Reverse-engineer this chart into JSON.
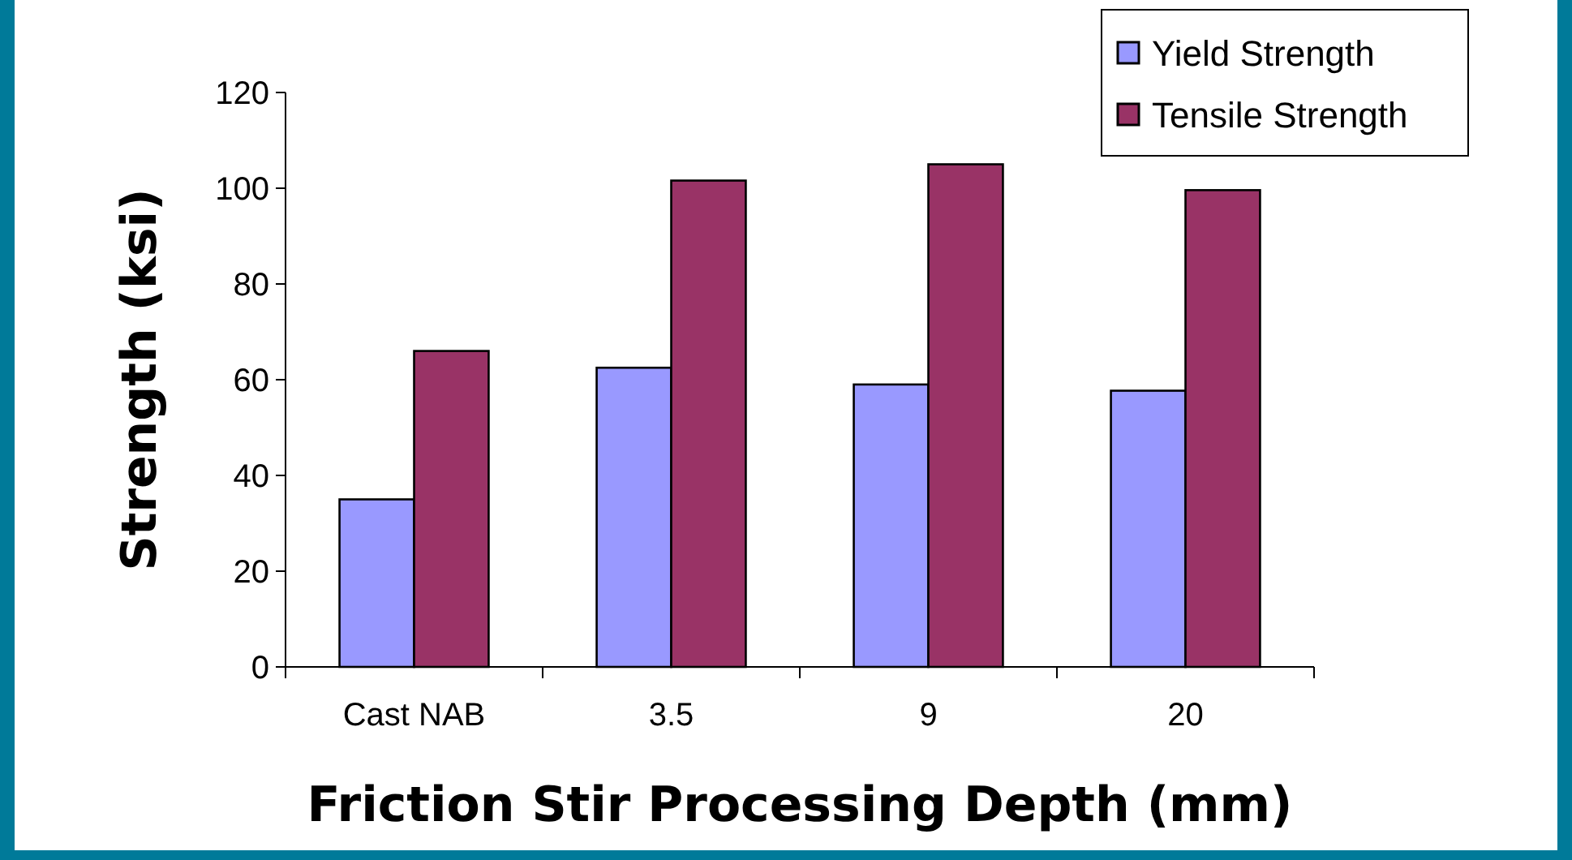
{
  "chart_data": {
    "type": "bar",
    "xlabel": "Friction Stir Processing Depth (mm)",
    "ylabel": "Strength (ksi)",
    "categories": [
      "Cast NAB",
      "3.5",
      "9",
      "20"
    ],
    "series": [
      {
        "name": "Yield Strength",
        "color": "#9999ff",
        "values": [
          35,
          62.5,
          59,
          57.7
        ]
      },
      {
        "name": "Tensile Strength",
        "color": "#993366",
        "values": [
          66,
          101.6,
          105,
          99.6
        ]
      }
    ],
    "ylim": [
      0,
      120
    ],
    "yticks": [
      0,
      20,
      40,
      60,
      80,
      100,
      120
    ],
    "grid": false,
    "legend": "top right"
  }
}
